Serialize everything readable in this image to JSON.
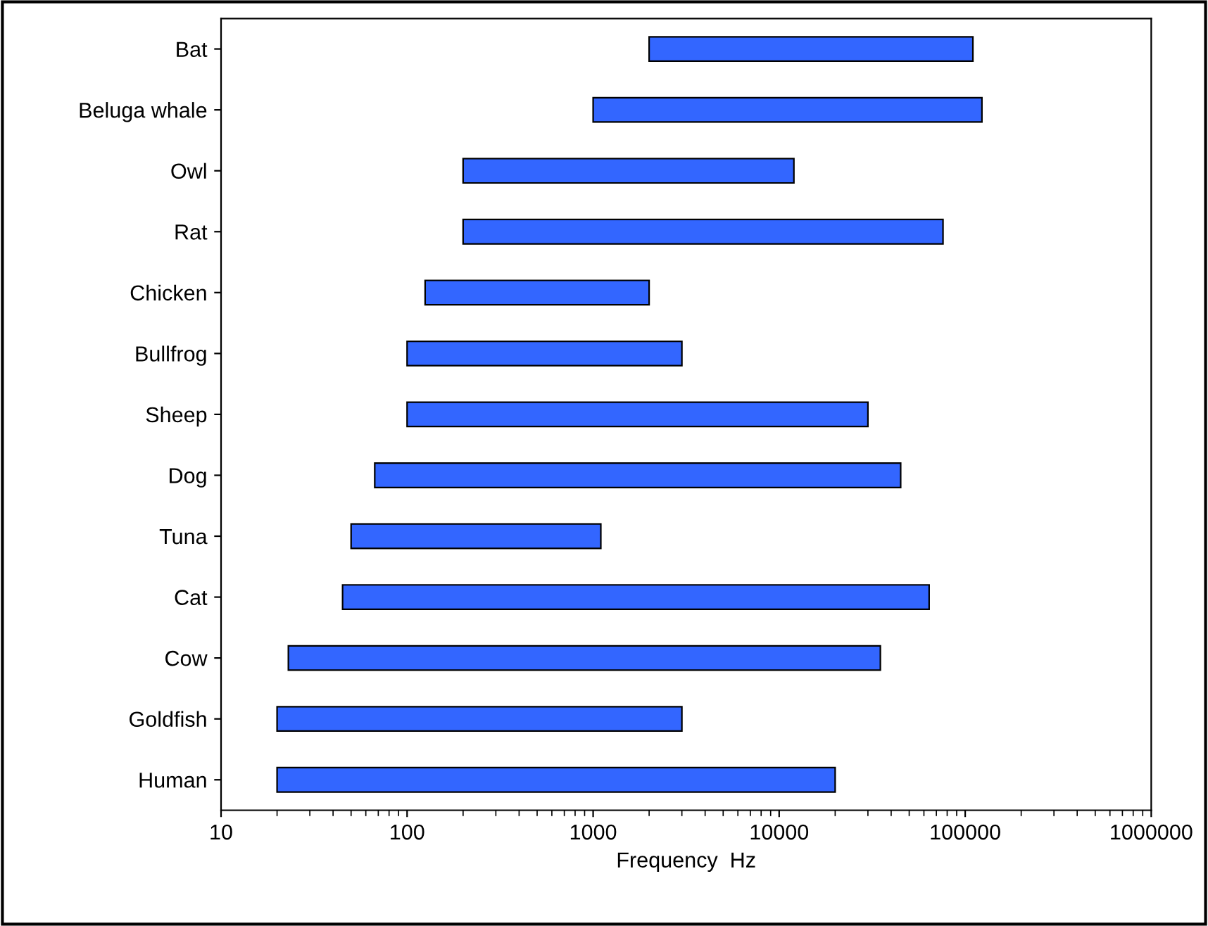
{
  "chart_data": {
    "type": "bar",
    "orientation": "horizontal",
    "xlabel": "Frequency  Hz",
    "categories": [
      "Bat",
      "Beluga whale",
      "Owl",
      "Rat",
      "Chicken",
      "Bullfrog",
      "Sheep",
      "Dog",
      "Tuna",
      "Cat",
      "Cow",
      "Goldfish",
      "Human"
    ],
    "base": [
      2000,
      1000,
      200,
      200,
      125,
      100,
      100,
      67,
      50,
      45,
      23,
      20,
      20
    ],
    "values": [
      108000,
      122000,
      11800,
      75800,
      1875,
      2900,
      29900,
      44933,
      1050,
      63955,
      34977,
      2980,
      19980
    ],
    "color": "#3366ff",
    "log": "x",
    "xlim": [
      10,
      1000000
    ],
    "xticks": [
      10,
      100,
      1000,
      10000,
      100000,
      1000000
    ],
    "grid": false
  }
}
